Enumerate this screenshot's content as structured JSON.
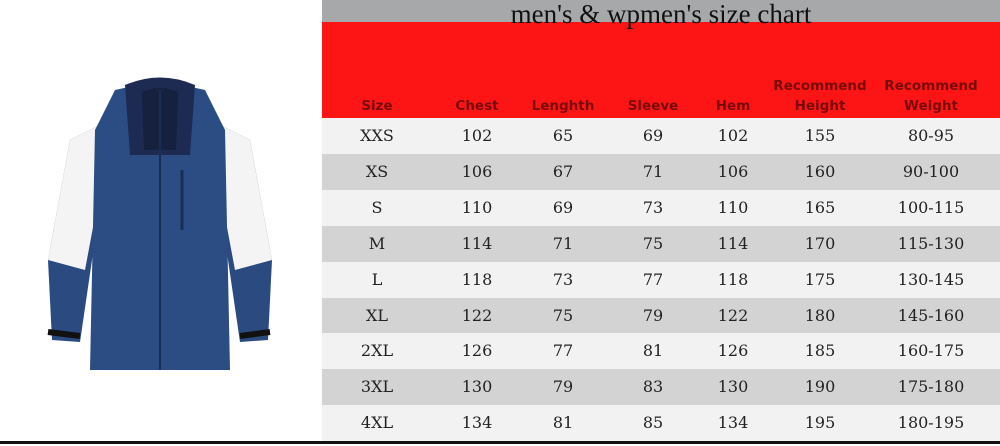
{
  "title": "men's & wpmen's size chart",
  "product_image": "navy-white-hooded-jacket",
  "colors": {
    "header": "#fd1515",
    "title_band": "#a7a8aa",
    "header_text": "#7a0a0a",
    "row_light": "#f2f2f2",
    "row_dark": "#d4d3d3",
    "jacket": "#2a4a80"
  },
  "columns": [
    {
      "line1": "",
      "line2": "Size"
    },
    {
      "line1": "",
      "line2": "Chest"
    },
    {
      "line1": "",
      "line2": "Lenghth"
    },
    {
      "line1": "",
      "line2": "Sleeve"
    },
    {
      "line1": "",
      "line2": "Hem"
    },
    {
      "line1": "Recommend",
      "line2": "Height"
    },
    {
      "line1": "Recommend",
      "line2": "Weight"
    }
  ],
  "rows": [
    [
      "XXS",
      "102",
      "65",
      "69",
      "102",
      "155",
      "80-95"
    ],
    [
      "XS",
      "106",
      "67",
      "71",
      "106",
      "160",
      "90-100"
    ],
    [
      "S",
      "110",
      "69",
      "73",
      "110",
      "165",
      "100-115"
    ],
    [
      "M",
      "114",
      "71",
      "75",
      "114",
      "170",
      "115-130"
    ],
    [
      "L",
      "118",
      "73",
      "77",
      "118",
      "175",
      "130-145"
    ],
    [
      "XL",
      "122",
      "75",
      "79",
      "122",
      "180",
      "145-160"
    ],
    [
      "2XL",
      "126",
      "77",
      "81",
      "126",
      "185",
      "160-175"
    ],
    [
      "3XL",
      "130",
      "79",
      "83",
      "130",
      "190",
      "175-180"
    ],
    [
      "4XL",
      "134",
      "81",
      "85",
      "134",
      "195",
      "180-195"
    ]
  ]
}
